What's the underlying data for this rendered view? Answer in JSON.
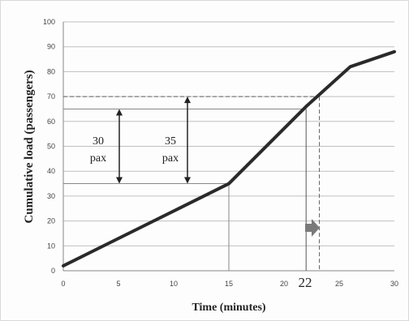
{
  "chart_data": {
    "type": "line",
    "title": "",
    "xlabel": "Time (minutes)",
    "ylabel": "Cumulative load (passengers)",
    "xlim": [
      0,
      30
    ],
    "ylim": [
      0,
      100
    ],
    "x_ticks": [
      "0",
      "5",
      "10",
      "15",
      "20",
      "25",
      "30"
    ],
    "y_ticks": [
      "0",
      "10",
      "20",
      "30",
      "40",
      "50",
      "60",
      "70",
      "80",
      "90",
      "100"
    ],
    "grid": true,
    "series": [
      {
        "x": [
          0,
          15,
          22,
          26,
          30
        ],
        "values": [
          2,
          35,
          66,
          82,
          88
        ]
      }
    ],
    "reference_lines": {
      "horizontal": [
        35,
        65,
        70
      ],
      "vertical": [
        15,
        22,
        23.2
      ]
    },
    "annotations": {
      "a30_line1": "30",
      "a30_line2": "pax",
      "a35_line1": "35",
      "a35_line2": "pax",
      "x_marker": "22"
    },
    "colors": {
      "line": "#2a2a2a",
      "grid": "#bfbfbf",
      "arrow": "#7a7a7a"
    }
  }
}
